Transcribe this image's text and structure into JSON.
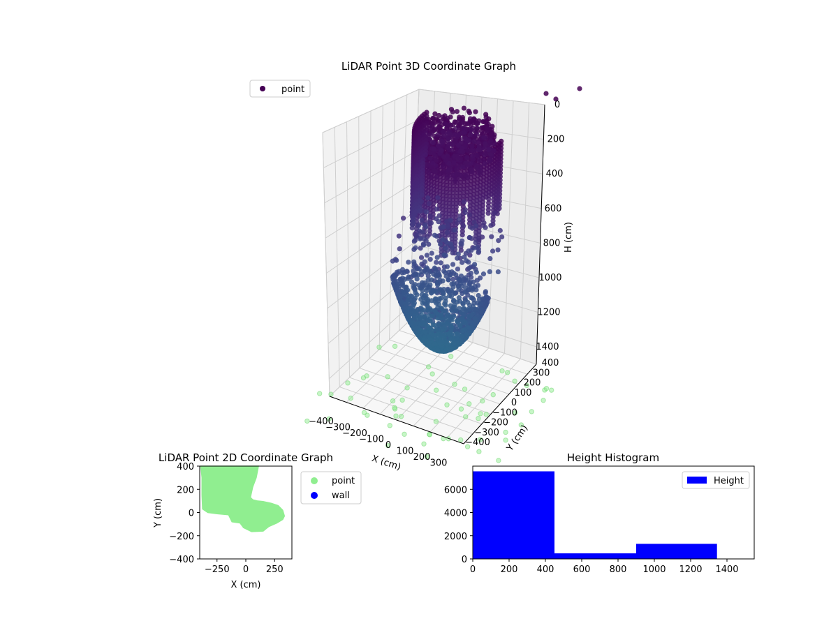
{
  "chart_data": [
    {
      "type": "scatter",
      "title": "LiDAR Point 3D Coordinate Graph",
      "xlabel": "X (cm)",
      "ylabel": "Y (cm)",
      "zlabel": "H (cm)",
      "x_ticks": [
        "−400",
        "−300",
        "−200",
        "−100",
        "0",
        "100",
        "200",
        "300"
      ],
      "y_ticks": [
        "−400",
        "−300",
        "−200",
        "−100",
        "0",
        "100",
        "200",
        "300",
        "400"
      ],
      "z_ticks": [
        "0",
        "200",
        "400",
        "600",
        "800",
        "1000",
        "1200",
        "1400"
      ],
      "xlim": [
        -400,
        400
      ],
      "ylim": [
        -400,
        400
      ],
      "zlim": [
        0,
        1500
      ],
      "z_axis_inverted": true,
      "grid": true,
      "colormap": "viridis",
      "legend": {
        "position": "upper-left",
        "entries": [
          {
            "label": "point",
            "color": "#440154"
          }
        ]
      },
      "clusters": [
        {
          "name": "upper column",
          "z_range": [
            0,
            700
          ],
          "x_range": [
            -250,
            250
          ],
          "y_range": [
            -100,
            400
          ]
        },
        {
          "name": "bowl",
          "z_range": [
            850,
            1300
          ],
          "x_range": [
            -250,
            300
          ],
          "y_range": [
            -200,
            100
          ]
        }
      ],
      "floor_projection_color": "#90ee90"
    },
    {
      "type": "scatter",
      "title": "LiDAR Point 2D Coordinate Graph",
      "xlabel": "X (cm)",
      "ylabel": "Y (cm)",
      "x_ticks": [
        "−250",
        "0",
        "250"
      ],
      "y_ticks": [
        "400",
        "200",
        "0",
        "−200",
        "−400"
      ],
      "xlim": [
        -400,
        400
      ],
      "ylim": [
        -400,
        400
      ],
      "legend": {
        "position": "outside-right",
        "entries": [
          {
            "label": "point",
            "color": "#90ee90"
          },
          {
            "label": "wall",
            "color": "#0000ff"
          }
        ]
      },
      "series": [
        {
          "name": "point",
          "color": "#90ee90",
          "outline": [
            [
              -390,
              400
            ],
            [
              -380,
              300
            ],
            [
              -380,
              150
            ],
            [
              -375,
              30
            ],
            [
              -330,
              0
            ],
            [
              -250,
              -10
            ],
            [
              -150,
              -20
            ],
            [
              -120,
              -80
            ],
            [
              -50,
              -90
            ],
            [
              -20,
              -130
            ],
            [
              50,
              -165
            ],
            [
              150,
              -160
            ],
            [
              200,
              -120
            ],
            [
              270,
              -90
            ],
            [
              320,
              -60
            ],
            [
              335,
              -30
            ],
            [
              320,
              20
            ],
            [
              280,
              60
            ],
            [
              220,
              80
            ],
            [
              150,
              95
            ],
            [
              100,
              100
            ],
            [
              60,
              110
            ],
            [
              40,
              130
            ],
            [
              60,
              220
            ],
            [
              90,
              300
            ],
            [
              110,
              400
            ]
          ]
        },
        {
          "name": "wall",
          "color": "#0000ff",
          "points": []
        }
      ]
    },
    {
      "type": "bar",
      "title": "Height Histogram",
      "x_ticks": [
        "0",
        "200",
        "400",
        "600",
        "800",
        "1000",
        "1200",
        "1400"
      ],
      "y_ticks": [
        "0",
        "2000",
        "4000",
        "6000"
      ],
      "xlim": [
        0,
        1550
      ],
      "ylim": [
        0,
        8000
      ],
      "legend": {
        "position": "upper-right",
        "entries": [
          {
            "label": "Height",
            "color": "#0000ff"
          }
        ]
      },
      "bins": [
        {
          "x0": 0,
          "x1": 450,
          "value": 7550
        },
        {
          "x0": 450,
          "x1": 900,
          "value": 480
        },
        {
          "x0": 900,
          "x1": 1345,
          "value": 1300
        }
      ],
      "color": "#0000ff"
    }
  ]
}
